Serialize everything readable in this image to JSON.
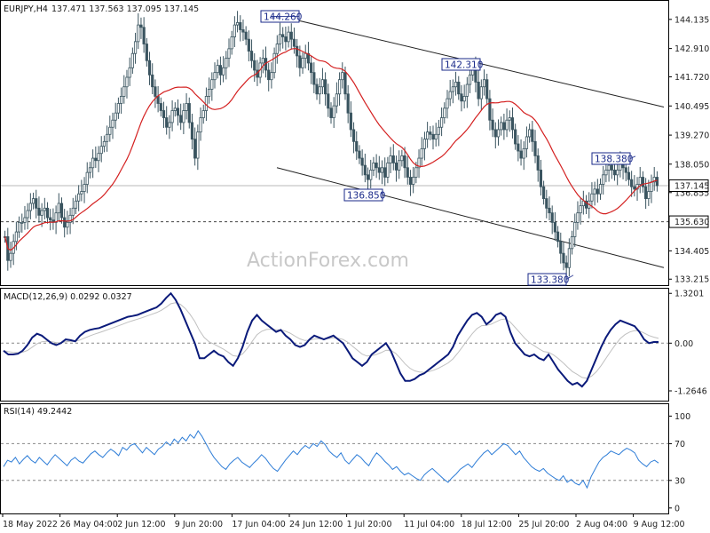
{
  "chart_data": [
    {
      "type": "candlestick",
      "title": "EURJPY,H4",
      "ohlc": {
        "open": 137.471,
        "high": 137.563,
        "low": 137.095,
        "close": 137.145
      },
      "ylim": [
        133.0,
        144.8
      ],
      "yticks": [
        "144.135",
        "142.910",
        "141.720",
        "140.495",
        "139.270",
        "138.050",
        "136.855",
        "135.630",
        "134.405",
        "133.215"
      ],
      "ytick_values": [
        144.135,
        142.91,
        141.72,
        140.495,
        139.27,
        138.05,
        136.855,
        135.63,
        134.405,
        133.215
      ],
      "current_price": {
        "label": "137.145",
        "value": 137.145
      },
      "support_level": {
        "label": "135.630",
        "value": 135.63
      },
      "annotations": [
        {
          "label": "144.260",
          "x": "22 Jun",
          "y": 144.26
        },
        {
          "label": "142.310",
          "x": "19 Jul",
          "y": 142.31
        },
        {
          "label": "136.850",
          "x": "13 Jul",
          "y": 136.85
        },
        {
          "label": "138.380",
          "x": "10 Aug",
          "y": 138.38
        },
        {
          "label": "133.380",
          "x": "2 Aug",
          "y": 133.38
        }
      ],
      "channel_upper": [
        {
          "x": "23 Jun",
          "y": 144.3
        },
        {
          "x": "15 Aug",
          "y": 140.45
        }
      ],
      "channel_lower": [
        {
          "x": "30 Jun",
          "y": 137.9
        },
        {
          "x": "15 Aug",
          "y": 133.7
        }
      ],
      "moving_average_color": "#d42020",
      "candle_color": "#3b5560",
      "close": [
        135.0,
        134.0,
        134.3,
        134.8,
        135.2,
        135.6,
        135.6,
        135.8,
        136.1,
        136.4,
        136.6,
        136.2,
        135.9,
        136.1,
        136.2,
        135.8,
        135.7,
        135.6,
        136.0,
        136.4,
        135.8,
        135.4,
        135.6,
        135.9,
        136.2,
        136.5,
        136.8,
        136.9,
        137.2,
        137.7,
        137.9,
        138.3,
        138.2,
        138.5,
        138.8,
        139.0,
        139.3,
        139.6,
        139.9,
        140.2,
        140.6,
        140.9,
        141.3,
        141.7,
        142.1,
        142.7,
        143.2,
        143.9,
        143.8,
        143.1,
        142.4,
        141.8,
        141.3,
        140.9,
        140.6,
        140.3,
        140.0,
        139.6,
        139.8,
        140.3,
        140.4,
        140.1,
        139.8,
        140.3,
        140.6,
        139.8,
        139.1,
        138.3,
        139.4,
        140.0,
        140.3,
        140.9,
        141.2,
        141.6,
        141.9,
        142.2,
        141.8,
        142.1,
        142.5,
        142.9,
        143.4,
        143.9,
        144.0,
        143.7,
        143.6,
        143.3,
        142.8,
        142.4,
        142.0,
        141.7,
        142.3,
        142.5,
        142.0,
        141.6,
        141.9,
        142.7,
        143.1,
        143.5,
        143.4,
        143.2,
        143.6,
        143.3,
        143.0,
        142.6,
        142.1,
        142.5,
        142.7,
        142.3,
        141.9,
        141.4,
        141.0,
        141.3,
        141.6,
        141.0,
        140.4,
        140.0,
        140.5,
        141.0,
        141.6,
        141.9,
        141.0,
        140.2,
        139.5,
        139.0,
        138.6,
        138.3,
        138.0,
        137.6,
        137.4,
        137.8,
        138.1,
        137.9,
        137.7,
        137.9,
        137.5,
        138.1,
        138.4,
        138.1,
        137.8,
        138.2,
        138.4,
        137.9,
        137.5,
        137.2,
        137.5,
        137.9,
        138.3,
        138.7,
        139.1,
        139.4,
        139.3,
        139.1,
        139.3,
        139.6,
        140.0,
        140.4,
        140.8,
        141.1,
        141.3,
        141.5,
        141.0,
        140.7,
        140.9,
        141.4,
        141.8,
        142.2,
        141.5,
        140.8,
        141.3,
        141.6,
        140.8,
        139.9,
        139.5,
        139.2,
        139.5,
        139.8,
        139.5,
        139.9,
        140.0,
        139.5,
        138.9,
        138.6,
        138.3,
        138.7,
        139.2,
        139.5,
        139.0,
        138.4,
        137.8,
        137.1,
        136.6,
        136.2,
        136.0,
        135.6,
        135.2,
        134.8,
        134.3,
        133.9,
        133.7,
        134.5,
        135.0,
        135.6,
        136.0,
        136.3,
        136.5,
        136.2,
        136.5,
        136.8,
        137.0,
        136.8,
        137.2,
        137.6,
        137.8,
        138.0,
        137.8,
        137.6,
        137.8,
        138.1,
        137.9,
        137.7,
        137.4,
        137.1,
        137.0,
        137.2,
        137.5,
        137.1,
        136.6,
        136.9,
        137.3,
        137.5,
        137.145
      ]
    },
    {
      "type": "line",
      "title": "MACD(12,26,9) 0.0292 0.0327",
      "ylim": [
        -1.5,
        1.42
      ],
      "yticks": [
        "1.3201",
        "0.00",
        "-1.2646"
      ],
      "ytick_values": [
        1.3201,
        0.0,
        -1.2646
      ],
      "macd_color": "#0a1a7a",
      "signal_color": "#c0c0c0",
      "macd": [
        -0.2,
        -0.3,
        -0.3,
        -0.28,
        -0.2,
        -0.05,
        0.15,
        0.25,
        0.2,
        0.1,
        0.0,
        -0.05,
        0.0,
        0.1,
        0.08,
        0.05,
        0.2,
        0.3,
        0.35,
        0.38,
        0.4,
        0.45,
        0.5,
        0.55,
        0.6,
        0.65,
        0.7,
        0.72,
        0.75,
        0.8,
        0.85,
        0.9,
        0.95,
        1.05,
        1.2,
        1.32,
        1.15,
        0.9,
        0.6,
        0.3,
        0.0,
        -0.4,
        -0.4,
        -0.3,
        -0.2,
        -0.3,
        -0.35,
        -0.5,
        -0.6,
        -0.4,
        -0.1,
        0.3,
        0.6,
        0.75,
        0.6,
        0.5,
        0.4,
        0.3,
        0.35,
        0.2,
        0.1,
        -0.05,
        -0.1,
        -0.05,
        0.1,
        0.2,
        0.15,
        0.1,
        0.15,
        0.2,
        0.1,
        0.0,
        -0.2,
        -0.4,
        -0.5,
        -0.6,
        -0.5,
        -0.3,
        -0.2,
        -0.1,
        0.0,
        -0.2,
        -0.5,
        -0.8,
        -1.0,
        -1.0,
        -0.95,
        -0.85,
        -0.8,
        -0.7,
        -0.6,
        -0.5,
        -0.4,
        -0.3,
        -0.1,
        0.2,
        0.4,
        0.6,
        0.75,
        0.8,
        0.7,
        0.5,
        0.6,
        0.75,
        0.8,
        0.7,
        0.3,
        0.0,
        -0.15,
        -0.3,
        -0.35,
        -0.3,
        -0.4,
        -0.45,
        -0.3,
        -0.5,
        -0.7,
        -0.85,
        -1.0,
        -1.1,
        -1.05,
        -1.15,
        -1.0,
        -0.7,
        -0.4,
        -0.1,
        0.15,
        0.35,
        0.5,
        0.6,
        0.55,
        0.5,
        0.45,
        0.3,
        0.1,
        0.0,
        0.03,
        0.03
      ]
    },
    {
      "type": "line",
      "title": "RSI(14) 49.2442",
      "ylim": [
        -5,
        112
      ],
      "yticks": [
        "100",
        "70",
        "30",
        "0"
      ],
      "ytick_values": [
        100,
        70,
        30,
        0
      ],
      "levels": [
        70,
        30
      ],
      "rsi_color": "#2e7dd7",
      "rsi": [
        45,
        52,
        50,
        55,
        48,
        53,
        57,
        52,
        49,
        55,
        51,
        47,
        53,
        58,
        54,
        50,
        46,
        52,
        55,
        51,
        49,
        54,
        59,
        62,
        58,
        55,
        60,
        64,
        61,
        57,
        66,
        63,
        68,
        70,
        65,
        60,
        66,
        62,
        58,
        64,
        67,
        72,
        68,
        75,
        71,
        77,
        73,
        80,
        76,
        84,
        78,
        70,
        62,
        55,
        50,
        45,
        42,
        48,
        52,
        55,
        50,
        47,
        44,
        49,
        53,
        58,
        54,
        48,
        43,
        40,
        46,
        52,
        57,
        62,
        58,
        64,
        68,
        65,
        70,
        67,
        73,
        69,
        62,
        58,
        55,
        60,
        52,
        48,
        53,
        58,
        55,
        50,
        46,
        54,
        60,
        56,
        51,
        47,
        42,
        45,
        40,
        36,
        38,
        35,
        32,
        30,
        36,
        40,
        43,
        39,
        35,
        31,
        28,
        33,
        37,
        42,
        45,
        48,
        44,
        50,
        55,
        60,
        63,
        58,
        62,
        66,
        70,
        68,
        63,
        58,
        62,
        55,
        50,
        45,
        42,
        40,
        43,
        38,
        35,
        32,
        30,
        35,
        28,
        31,
        27,
        25,
        30,
        22,
        34,
        42,
        50,
        55,
        58,
        62,
        60,
        58,
        62,
        65,
        63,
        60,
        52,
        48,
        45,
        50,
        52,
        49
      ]
    }
  ],
  "x_axis": {
    "labels": [
      "18 May 2022",
      "26 May 04:00",
      "2 Jun 12:00",
      "9 Jun 20:00",
      "17 Jun 04:00",
      "24 Jun 12:00",
      "1 Jul 20:00",
      "11 Jul 04:00",
      "18 Jul 12:00",
      "25 Jul 20:00",
      "2 Aug 04:00",
      "9 Aug 12:00"
    ]
  },
  "watermark": "ActionForex.com"
}
